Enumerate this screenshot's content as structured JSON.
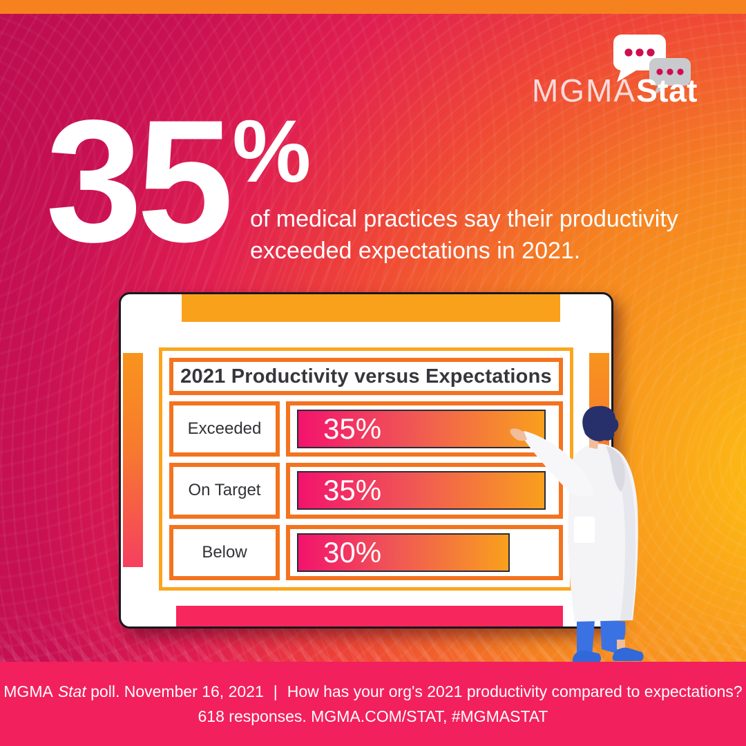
{
  "logo": {
    "brand_light": "MGMA",
    "brand_bold": "Stat"
  },
  "headline": {
    "number": "35",
    "percent": "%",
    "line1": "of medical practices say their productivity",
    "line2": "exceeded expectations in 2021."
  },
  "chart_data": {
    "type": "bar",
    "orientation": "horizontal",
    "title": "2021 Productivity versus Expectations",
    "categories": [
      "Exceeded",
      "On Target",
      "Below"
    ],
    "values": [
      35,
      35,
      30
    ],
    "value_labels": [
      "35%",
      "35%",
      "30%"
    ],
    "x_axis_max": 35,
    "grid": false,
    "legend": false,
    "bar_color_start": "#F3136D",
    "bar_color_end": "#F9A01D"
  },
  "footer": {
    "brand": "MGMA",
    "brand_italic": "Stat",
    "poll_info": " poll. November 16, 2021",
    "divider": "|",
    "question": "How has your org's 2021 productivity compared to expectations?",
    "line2": "618 responses. MGMA.COM/STAT, #MGMASTAT"
  },
  "illustration": {
    "description": "doctor in white coat pointing at chart"
  },
  "colors": {
    "top_strip": "#F5821F",
    "footer_band": "#F2205C",
    "frame_orange": "#F4731F",
    "frame_light_orange": "#FBA61E",
    "board_band_top": "#F9A11B",
    "board_band_bottom": "#F7265D"
  }
}
